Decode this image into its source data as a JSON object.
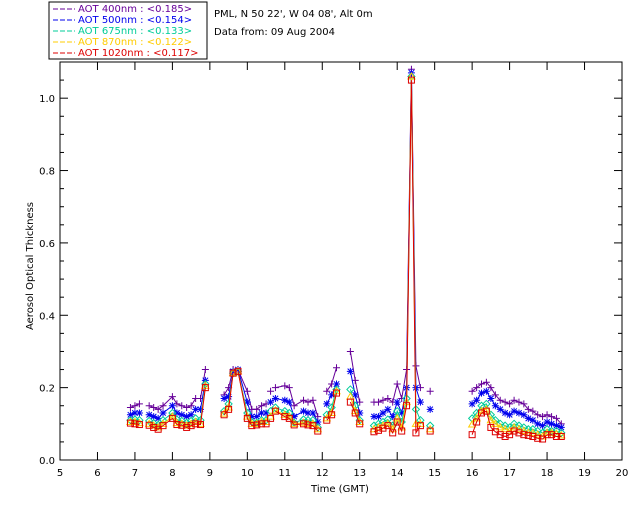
{
  "info": {
    "site": "PML, N 50 22', W 04 08', Alt 0m",
    "date": "Data from: 09 Aug 2004"
  },
  "chart_data": {
    "type": "line",
    "xlabel": "Time (GMT)",
    "ylabel": "Aerosol Optical Thickness",
    "xlim": [
      5,
      20
    ],
    "ylim": [
      0,
      1.1
    ],
    "xticks": [
      5,
      6,
      7,
      8,
      9,
      10,
      11,
      12,
      13,
      14,
      15,
      16,
      17,
      18,
      19,
      20
    ],
    "yticks": [
      0.0,
      0.2,
      0.4,
      0.6,
      0.8,
      1.0
    ],
    "ytick_labels": [
      "0.0",
      "0.2",
      "0.4",
      "0.6",
      "0.8",
      "1.0"
    ],
    "legend_position": "top-left",
    "grid": false,
    "x": [
      6.88,
      7.0,
      7.12,
      7.38,
      7.5,
      7.62,
      7.75,
      8.0,
      8.12,
      8.25,
      8.38,
      8.5,
      8.62,
      8.75,
      8.88,
      9.38,
      9.5,
      9.62,
      9.75,
      10.0,
      10.12,
      10.25,
      10.38,
      10.5,
      10.62,
      10.75,
      11.0,
      11.12,
      11.25,
      11.5,
      11.62,
      11.75,
      11.88,
      12.12,
      12.25,
      12.38,
      12.75,
      12.88,
      13.0,
      13.38,
      13.5,
      13.62,
      13.75,
      13.88,
      14.0,
      14.12,
      14.25,
      14.38,
      14.5,
      14.62,
      14.88,
      16.0,
      16.12,
      16.25,
      16.38,
      16.5,
      16.62,
      16.75,
      16.88,
      17.0,
      17.12,
      17.25,
      17.38,
      17.5,
      17.62,
      17.75,
      17.88,
      18.0,
      18.12,
      18.25,
      18.38
    ],
    "segments": [
      [
        0,
        2
      ],
      [
        3,
        14
      ],
      [
        15,
        17
      ],
      [
        18,
        23
      ],
      [
        24,
        24
      ],
      [
        25,
        32
      ],
      [
        33,
        35
      ],
      [
        36,
        38
      ],
      [
        39,
        49
      ],
      [
        50,
        50
      ],
      [
        51,
        70
      ]
    ],
    "series": [
      {
        "name": "AOT  400nm : <0.185>",
        "color": "#660099",
        "marker": "plus",
        "values": [
          0.145,
          0.15,
          0.155,
          0.15,
          0.145,
          0.14,
          0.15,
          0.175,
          0.155,
          0.15,
          0.145,
          0.15,
          0.17,
          0.17,
          0.25,
          0.18,
          0.2,
          0.25,
          0.25,
          0.19,
          0.14,
          0.14,
          0.15,
          0.155,
          0.19,
          0.2,
          0.205,
          0.2,
          0.15,
          0.165,
          0.16,
          0.165,
          0.12,
          0.19,
          0.21,
          0.255,
          0.3,
          0.22,
          0.16,
          0.16,
          0.16,
          0.165,
          0.17,
          0.16,
          0.21,
          0.17,
          0.25,
          1.08,
          0.26,
          0.2,
          0.19,
          0.19,
          0.2,
          0.21,
          0.215,
          0.2,
          0.18,
          0.165,
          0.16,
          0.155,
          0.165,
          0.16,
          0.155,
          0.14,
          0.135,
          0.125,
          0.12,
          0.125,
          0.12,
          0.115,
          0.1
        ]
      },
      {
        "name": "AOT  500nm : <0.154>",
        "color": "#0000ee",
        "marker": "asterisk",
        "values": [
          0.125,
          0.13,
          0.13,
          0.125,
          0.12,
          0.115,
          0.13,
          0.15,
          0.13,
          0.125,
          0.12,
          0.125,
          0.14,
          0.14,
          0.22,
          0.17,
          0.175,
          0.245,
          0.25,
          0.16,
          0.12,
          0.12,
          0.13,
          0.13,
          0.16,
          0.17,
          0.165,
          0.16,
          0.12,
          0.135,
          0.13,
          0.13,
          0.105,
          0.155,
          0.18,
          0.21,
          0.245,
          0.18,
          0.13,
          0.12,
          0.12,
          0.13,
          0.14,
          0.12,
          0.16,
          0.13,
          0.2,
          1.07,
          0.2,
          0.16,
          0.14,
          0.155,
          0.165,
          0.185,
          0.19,
          0.17,
          0.15,
          0.14,
          0.13,
          0.125,
          0.135,
          0.13,
          0.125,
          0.115,
          0.11,
          0.1,
          0.095,
          0.105,
          0.1,
          0.095,
          0.09
        ]
      },
      {
        "name": "AOT  675nm : <0.133>",
        "color": "#00cc99",
        "marker": "diamond",
        "values": [
          0.11,
          0.112,
          0.11,
          0.108,
          0.102,
          0.097,
          0.11,
          0.13,
          0.112,
          0.108,
          0.103,
          0.108,
          0.115,
          0.11,
          0.21,
          0.135,
          0.155,
          0.24,
          0.245,
          0.13,
          0.105,
          0.103,
          0.11,
          0.11,
          0.135,
          0.145,
          0.135,
          0.13,
          0.103,
          0.112,
          0.11,
          0.11,
          0.09,
          0.125,
          0.145,
          0.195,
          0.195,
          0.15,
          0.11,
          0.095,
          0.1,
          0.105,
          0.112,
          0.095,
          0.135,
          0.105,
          0.17,
          1.06,
          0.14,
          0.11,
          0.095,
          0.115,
          0.13,
          0.15,
          0.155,
          0.125,
          0.11,
          0.1,
          0.095,
          0.09,
          0.1,
          0.095,
          0.09,
          0.085,
          0.085,
          0.08,
          0.075,
          0.085,
          0.08,
          0.08,
          0.075
        ]
      },
      {
        "name": "AOT  870nm : <0.122>",
        "color": "#ffcc00",
        "marker": "triangle",
        "values": [
          0.105,
          0.105,
          0.102,
          0.1,
          0.095,
          0.09,
          0.1,
          0.12,
          0.102,
          0.1,
          0.095,
          0.1,
          0.105,
          0.1,
          0.205,
          0.128,
          0.145,
          0.24,
          0.245,
          0.12,
          0.1,
          0.1,
          0.105,
          0.105,
          0.12,
          0.137,
          0.125,
          0.12,
          0.1,
          0.103,
          0.1,
          0.1,
          0.085,
          0.115,
          0.13,
          0.19,
          0.175,
          0.135,
          0.105,
          0.085,
          0.09,
          0.095,
          0.1,
          0.085,
          0.115,
          0.09,
          0.16,
          1.06,
          0.1,
          0.1,
          0.085,
          0.098,
          0.115,
          0.135,
          0.14,
          0.11,
          0.1,
          0.09,
          0.085,
          0.08,
          0.09,
          0.085,
          0.08,
          0.075,
          0.075,
          0.07,
          0.065,
          0.075,
          0.075,
          0.072,
          0.068
        ]
      },
      {
        "name": "AOT 1020nm : <0.117>",
        "color": "#dd0000",
        "marker": "square",
        "values": [
          0.102,
          0.1,
          0.098,
          0.096,
          0.09,
          0.085,
          0.095,
          0.115,
          0.098,
          0.096,
          0.09,
          0.095,
          0.1,
          0.098,
          0.2,
          0.125,
          0.14,
          0.24,
          0.245,
          0.115,
          0.095,
          0.097,
          0.1,
          0.1,
          0.115,
          0.135,
          0.12,
          0.115,
          0.097,
          0.1,
          0.097,
          0.095,
          0.08,
          0.11,
          0.125,
          0.185,
          0.16,
          0.13,
          0.1,
          0.078,
          0.082,
          0.088,
          0.095,
          0.075,
          0.105,
          0.08,
          0.15,
          1.05,
          0.075,
          0.095,
          0.08,
          0.07,
          0.105,
          0.13,
          0.135,
          0.09,
          0.078,
          0.07,
          0.065,
          0.07,
          0.08,
          0.075,
          0.07,
          0.068,
          0.065,
          0.06,
          0.058,
          0.07,
          0.07,
          0.065,
          0.065
        ]
      }
    ]
  }
}
